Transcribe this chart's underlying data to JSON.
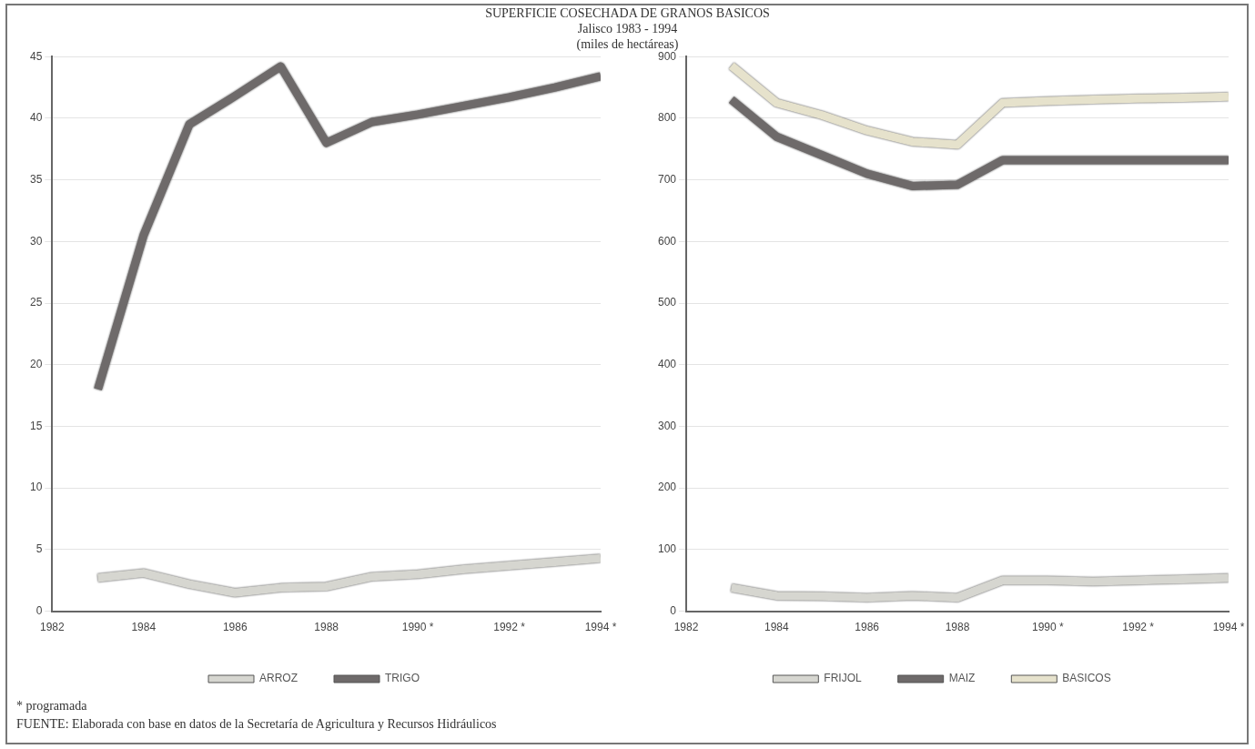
{
  "chart_data": [
    {
      "type": "line",
      "title": "SUPERFICIE COSECHADA DE GRANOS BASICOS",
      "subtitle": "Jalisco 1983 - 1994\n(miles de hectáreas)",
      "x": [
        1983,
        1984,
        1985,
        1986,
        1987,
        1988,
        1989,
        1990,
        1991,
        1992,
        1993,
        1994
      ],
      "series": [
        {
          "name": "ARROZ",
          "color": "#d6d6d0",
          "values": [
            2.7,
            3.1,
            2.2,
            1.5,
            1.9,
            2.0,
            2.8,
            3.0,
            3.4,
            3.7,
            4.0,
            4.3
          ]
        },
        {
          "name": "TRIGO",
          "color": "#6e6a6a",
          "values": [
            18,
            30.5,
            39.5,
            41.8,
            44.2,
            38,
            39.7,
            40.3,
            41,
            41.7,
            42.5,
            43.4
          ]
        }
      ],
      "xlim": [
        1982,
        1994
      ],
      "xticks": [
        1982,
        1984,
        1986,
        1988,
        {
          "value": 1990,
          "label": "1990 *"
        },
        {
          "value": 1992,
          "label": "1992 *"
        },
        {
          "value": 1994,
          "label": "1994 *"
        }
      ],
      "ylim": [
        0,
        45
      ],
      "yticks": [
        0,
        5,
        10,
        15,
        20,
        25,
        30,
        35,
        40,
        45
      ],
      "grid": "y",
      "legend": "bottom",
      "marker": "none"
    },
    {
      "type": "line",
      "x": [
        1983,
        1984,
        1985,
        1986,
        1987,
        1988,
        1989,
        1990,
        1991,
        1992,
        1993,
        1994
      ],
      "series": [
        {
          "name": "FRIJOL",
          "color": "#d6d6d0",
          "values": [
            38,
            25,
            24,
            22,
            25,
            22,
            50,
            50,
            48,
            50,
            52,
            54
          ]
        },
        {
          "name": "MAIZ",
          "color": "#6e6a6a",
          "values": [
            830,
            770,
            740,
            710,
            690,
            692,
            732,
            732,
            732,
            732,
            732,
            732
          ]
        },
        {
          "name": "BASICOS",
          "color": "#e6e2cc",
          "values": [
            885,
            825,
            805,
            780,
            762,
            757,
            825,
            828,
            830,
            832,
            833,
            835
          ]
        }
      ],
      "xlim": [
        1982,
        1994
      ],
      "xticks": [
        1982,
        1984,
        1986,
        1988,
        {
          "value": 1990,
          "label": "1990 *"
        },
        {
          "value": 1992,
          "label": "1992 *"
        },
        {
          "value": 1994,
          "label": "1994 *"
        }
      ],
      "ylim": [
        0,
        900
      ],
      "yticks": [
        0,
        100,
        200,
        300,
        400,
        500,
        600,
        700,
        800,
        900
      ],
      "grid": "y",
      "legend": "bottom",
      "marker": "none",
      "annotations": [
        "* programada",
        "FUENTE: Elaborada con base en datos de la Secretaría de Agricultura y Recursos Hidráulicos"
      ]
    }
  ]
}
